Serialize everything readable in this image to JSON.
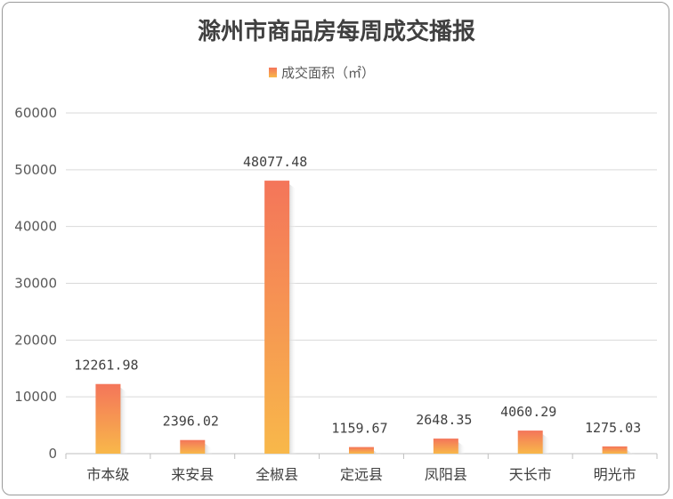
{
  "chart_data": {
    "type": "bar",
    "title": "滁州市商品房每周成交播报",
    "categories": [
      "市本级",
      "来安县",
      "全椒县",
      "定远县",
      "凤阳县",
      "天长市",
      "明光市"
    ],
    "series": [
      {
        "name": "成交面积（㎡）",
        "values": [
          12261.98,
          2396.02,
          48077.48,
          1159.67,
          2648.35,
          4060.29,
          1275.03
        ],
        "labels": [
          "12261.98",
          "2396.02",
          "48077.48",
          "1159.67",
          "2648.35",
          "4060.29",
          "1275.03"
        ]
      }
    ],
    "ylim": [
      0,
      60000
    ],
    "yticks": [
      "0",
      "10000",
      "20000",
      "30000",
      "40000",
      "50000",
      "60000"
    ],
    "grid": true,
    "legend": "top",
    "colors": {
      "bar_top": "#f4755a",
      "bar_bottom": "#f8b84a",
      "grid": "#d9d9d9",
      "axis": "#bfbfbf"
    }
  }
}
